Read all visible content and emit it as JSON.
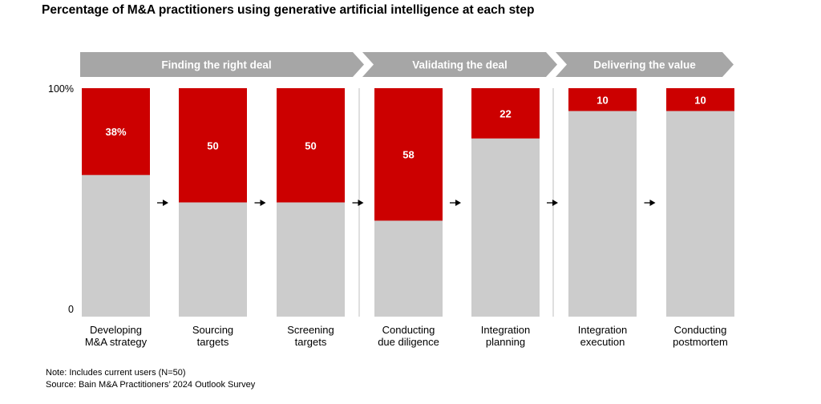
{
  "title": "Percentage of M&A practitioners using generative artificial intelligence at each step",
  "phases": [
    {
      "label": "Finding the right deal"
    },
    {
      "label": "Validating the deal"
    },
    {
      "label": "Delivering the value"
    }
  ],
  "colors": {
    "used": "#cc0000",
    "remaining": "#cccccc",
    "phase_banner": "#a6a6a6",
    "phase_text": "#ffffff",
    "separator": "#bfbfbf"
  },
  "chart_data": {
    "type": "bar",
    "stacked": true,
    "title": "Percentage of M&A practitioners using generative artificial intelligence at each step",
    "categories": [
      [
        "Developing",
        "M&A strategy"
      ],
      [
        "Sourcing",
        "targets"
      ],
      [
        "Screening",
        "targets"
      ],
      [
        "Conducting",
        "due diligence"
      ],
      [
        "Integration",
        "planning"
      ],
      [
        "Integration",
        "execution"
      ],
      [
        "Conducting",
        "postmortem"
      ]
    ],
    "phase_of_category": [
      0,
      0,
      0,
      1,
      1,
      2,
      2
    ],
    "values": [
      38,
      50,
      50,
      58,
      22,
      10,
      10
    ],
    "data_labels": [
      "38%",
      "50",
      "50",
      "58",
      "22",
      "10",
      "10"
    ],
    "ylim": [
      0,
      100
    ],
    "yticks": [
      "0",
      "100%"
    ],
    "grid": false,
    "legend": "none"
  },
  "notes": {
    "note": "Note: Includes current users (N=50)",
    "source": "Source: Bain M&A Practitioners’ 2024 Outlook Survey"
  }
}
